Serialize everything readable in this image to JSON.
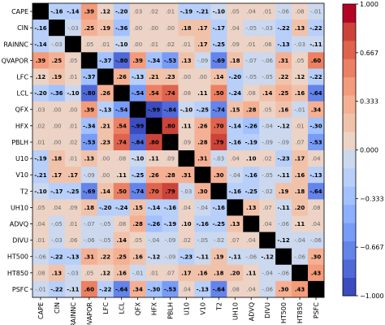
{
  "chart_data": {
    "type": "heatmap",
    "variables": [
      "CAPE",
      "CIN",
      "RAINNC",
      "QVAPOR",
      "LFC",
      "LCL",
      "QFX",
      "HFX",
      "PBLH",
      "U10",
      "V10",
      "T2",
      "UH10",
      "ADVQ",
      "DIVU",
      "HT500",
      "HT850",
      "PSFC"
    ],
    "matrix": [
      [
        null,
        -0.16,
        -0.14,
        0.39,
        0.12,
        -0.2,
        0.03,
        0.02,
        0.01,
        -0.19,
        -0.21,
        -0.1,
        0.05,
        0.04,
        0.01,
        -0.06,
        0.08,
        -0.01
      ],
      [
        -0.16,
        null,
        -0.03,
        0.25,
        0.19,
        -0.36,
        0.0,
        -0.0,
        0.0,
        0.18,
        0.17,
        -0.17,
        0.04,
        -0.05,
        -0.03,
        -0.22,
        0.13,
        -0.22
      ],
      [
        -0.14,
        -0.03,
        null,
        0.05,
        0.01,
        -0.1,
        0.0,
        0.01,
        0.02,
        0.01,
        0.17,
        -0.25,
        0.09,
        0.01,
        0.06,
        -0.13,
        -0.03,
        -0.11
      ],
      [
        0.39,
        0.25,
        0.05,
        null,
        -0.37,
        -0.8,
        0.39,
        -0.34,
        -0.53,
        0.13,
        -0.09,
        -0.69,
        0.18,
        -0.07,
        -0.06,
        0.31,
        0.05,
        0.6
      ],
      [
        0.12,
        0.19,
        0.01,
        -0.37,
        null,
        0.26,
        -0.13,
        0.21,
        0.23,
        -0.0,
        0.0,
        0.14,
        -0.2,
        -0.05,
        -0.05,
        0.22,
        0.12,
        -0.22
      ],
      [
        -0.2,
        -0.36,
        -0.1,
        -0.8,
        0.26,
        null,
        -0.54,
        0.54,
        0.74,
        0.08,
        0.11,
        0.5,
        -0.24,
        0.08,
        0.14,
        0.25,
        0.16,
        -0.64
      ],
      [
        0.03,
        0.0,
        0.0,
        0.39,
        -0.13,
        -0.54,
        null,
        -0.99,
        -0.84,
        -0.1,
        -0.25,
        -0.74,
        0.15,
        0.28,
        0.05,
        0.16,
        -0.01,
        0.34
      ],
      [
        0.02,
        -0.0,
        0.01,
        -0.34,
        0.21,
        0.54,
        -0.99,
        null,
        0.8,
        0.11,
        0.26,
        0.7,
        -0.14,
        -0.26,
        -0.04,
        -0.12,
        0.01,
        -0.3
      ],
      [
        0.01,
        0.0,
        0.02,
        -0.53,
        0.23,
        0.74,
        -0.84,
        0.8,
        null,
        0.09,
        0.28,
        0.79,
        -0.16,
        -0.19,
        -0.09,
        -0.09,
        0.07,
        -0.53
      ],
      [
        -0.19,
        0.18,
        0.01,
        0.13,
        -0.0,
        0.08,
        -0.1,
        0.11,
        0.09,
        null,
        0.31,
        -0.03,
        0.04,
        0.1,
        0.02,
        -0.23,
        0.17,
        0.04
      ],
      [
        -0.21,
        0.17,
        0.17,
        -0.09,
        0.0,
        0.11,
        -0.25,
        0.26,
        0.28,
        0.31,
        null,
        0.3,
        -0.04,
        -0.16,
        -0.05,
        -0.11,
        0.16,
        -0.13
      ],
      [
        -0.1,
        -0.17,
        -0.25,
        -0.69,
        0.14,
        0.5,
        -0.74,
        0.7,
        0.79,
        -0.03,
        0.3,
        null,
        -0.16,
        -0.25,
        -0.02,
        0.19,
        0.18,
        -0.64
      ],
      [
        0.05,
        0.04,
        0.09,
        0.18,
        -0.2,
        -0.24,
        0.15,
        -0.14,
        -0.16,
        0.04,
        -0.04,
        -0.16,
        null,
        0.13,
        0.07,
        -0.11,
        0.2,
        0.08
      ],
      [
        0.04,
        -0.05,
        0.01,
        -0.07,
        -0.05,
        0.08,
        0.28,
        -0.26,
        -0.19,
        0.1,
        -0.16,
        -0.25,
        0.13,
        null,
        0.04,
        -0.06,
        0.11,
        0.04
      ],
      [
        0.01,
        -0.03,
        0.06,
        -0.06,
        -0.05,
        0.14,
        0.05,
        -0.04,
        -0.09,
        0.02,
        -0.05,
        -0.02,
        0.07,
        0.04,
        null,
        -0.12,
        -0.04,
        -0.06
      ],
      [
        -0.06,
        -0.22,
        -0.13,
        0.31,
        0.22,
        0.25,
        0.16,
        -0.12,
        -0.09,
        -0.23,
        -0.11,
        0.19,
        -0.11,
        -0.06,
        -0.12,
        null,
        -0.06,
        0.3
      ],
      [
        0.08,
        0.13,
        -0.03,
        0.05,
        0.12,
        0.16,
        -0.01,
        0.01,
        0.07,
        0.17,
        0.16,
        0.18,
        0.2,
        0.11,
        -0.04,
        -0.06,
        null,
        0.43
      ],
      [
        -0.01,
        -0.22,
        -0.11,
        0.6,
        -0.22,
        -0.64,
        0.34,
        -0.3,
        -0.53,
        0.04,
        -0.13,
        -0.64,
        0.08,
        0.04,
        -0.06,
        0.3,
        0.43,
        null
      ]
    ],
    "diagonal_color": "#000000",
    "colorbar": {
      "min": -1.0,
      "max": 1.0,
      "ticks": [
        "1.000",
        "0.667",
        "0.333",
        "0.000",
        "−0.333",
        "−0.667",
        "−1.000"
      ],
      "colormap": "coolwarm (discrete)"
    }
  }
}
